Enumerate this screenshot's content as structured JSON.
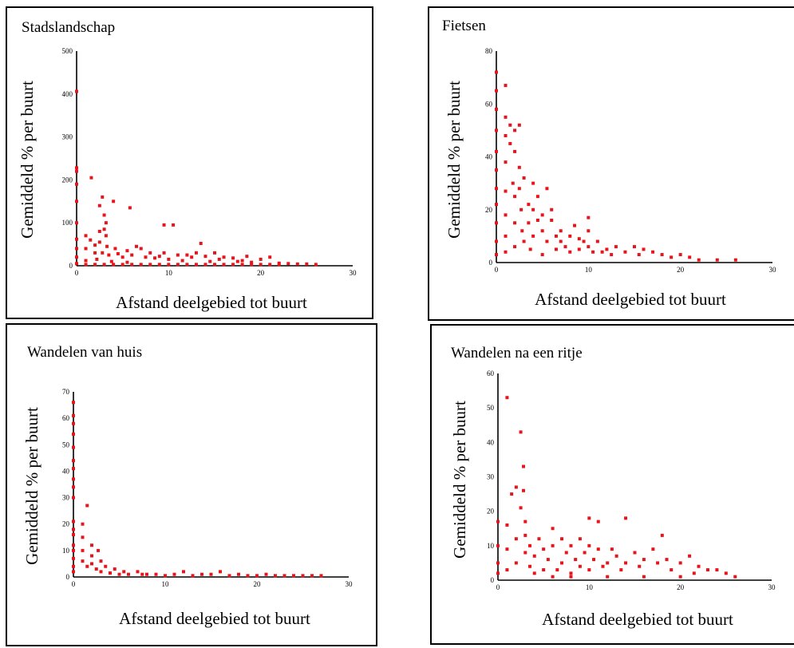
{
  "figure": {
    "ylabel": "Gemiddeld % per buurt",
    "xlabel": "Afstand deelgebied tot buurt",
    "point_color": "#e8141b"
  },
  "chart_data": [
    {
      "type": "scatter",
      "title": "Stadslandschap",
      "xlabel": "Afstand deelgebied tot buurt",
      "ylabel": "Gemiddeld % per buurt",
      "xlim": [
        0,
        30
      ],
      "ylim": [
        0,
        500
      ],
      "xticks": [
        "0",
        "10",
        "20",
        "30"
      ],
      "yticks": [
        "0",
        "100",
        "200",
        "300",
        "400",
        "500"
      ],
      "grid": false,
      "points": [
        [
          0,
          406
        ],
        [
          0,
          228
        ],
        [
          0,
          220
        ],
        [
          0,
          190
        ],
        [
          0,
          150
        ],
        [
          0,
          100
        ],
        [
          0,
          62
        ],
        [
          0,
          40
        ],
        [
          0,
          20
        ],
        [
          0,
          5
        ],
        [
          1,
          70
        ],
        [
          1,
          40
        ],
        [
          1,
          12
        ],
        [
          1.6,
          205
        ],
        [
          1.5,
          60
        ],
        [
          2,
          48
        ],
        [
          2,
          30
        ],
        [
          2.2,
          15
        ],
        [
          2.5,
          80
        ],
        [
          2.5,
          55
        ],
        [
          2.8,
          30
        ],
        [
          2.5,
          140
        ],
        [
          2.8,
          160
        ],
        [
          3,
          118
        ],
        [
          3,
          85
        ],
        [
          3.2,
          70
        ],
        [
          3.3,
          45
        ],
        [
          3.5,
          25
        ],
        [
          3.2,
          100
        ],
        [
          3.8,
          10
        ],
        [
          4,
          150
        ],
        [
          4.2,
          40
        ],
        [
          4.5,
          28
        ],
        [
          5,
          20
        ],
        [
          5.5,
          35
        ],
        [
          5.5,
          8
        ],
        [
          5.8,
          135
        ],
        [
          6,
          25
        ],
        [
          6.5,
          45
        ],
        [
          7,
          40
        ],
        [
          7.5,
          20
        ],
        [
          8,
          30
        ],
        [
          8.5,
          18
        ],
        [
          9,
          22
        ],
        [
          9.5,
          95
        ],
        [
          9.5,
          30
        ],
        [
          10,
          15
        ],
        [
          10.5,
          95
        ],
        [
          11,
          25
        ],
        [
          11.5,
          12
        ],
        [
          12,
          25
        ],
        [
          12.5,
          20
        ],
        [
          13,
          30
        ],
        [
          13.5,
          52
        ],
        [
          14,
          22
        ],
        [
          14.5,
          10
        ],
        [
          15,
          30
        ],
        [
          15.5,
          15
        ],
        [
          16,
          20
        ],
        [
          17,
          18
        ],
        [
          17.5,
          10
        ],
        [
          18,
          12
        ],
        [
          18.5,
          22
        ],
        [
          19,
          8
        ],
        [
          20,
          15
        ],
        [
          21,
          20
        ],
        [
          22,
          6
        ],
        [
          23,
          5
        ],
        [
          24,
          4
        ],
        [
          25,
          4
        ],
        [
          26,
          3
        ],
        [
          1,
          3
        ],
        [
          2,
          3
        ],
        [
          3,
          3
        ],
        [
          4,
          3
        ],
        [
          5,
          3
        ],
        [
          6,
          3
        ],
        [
          7,
          3
        ],
        [
          8,
          3
        ],
        [
          9,
          3
        ],
        [
          10,
          3
        ],
        [
          11,
          3
        ],
        [
          12,
          3
        ],
        [
          13,
          3
        ],
        [
          14,
          3
        ],
        [
          15,
          3
        ],
        [
          16,
          3
        ],
        [
          17,
          3
        ],
        [
          18,
          3
        ],
        [
          19,
          3
        ],
        [
          20,
          3
        ],
        [
          21,
          3
        ],
        [
          22,
          3
        ]
      ]
    },
    {
      "type": "scatter",
      "title": "Fietsen",
      "xlabel": "Afstand deelgebied tot buurt",
      "ylabel": "Gemiddeld % per buurt",
      "xlim": [
        0,
        30
      ],
      "ylim": [
        0,
        80
      ],
      "xticks": [
        "0",
        "10",
        "20",
        "30"
      ],
      "yticks": [
        "0",
        "20",
        "40",
        "60",
        "80"
      ],
      "grid": false,
      "points": [
        [
          0,
          72
        ],
        [
          0,
          65
        ],
        [
          0,
          58
        ],
        [
          0,
          50
        ],
        [
          0,
          42
        ],
        [
          0,
          35
        ],
        [
          0,
          28
        ],
        [
          0,
          22
        ],
        [
          0,
          15
        ],
        [
          0,
          8
        ],
        [
          0,
          3
        ],
        [
          1,
          67
        ],
        [
          1,
          55
        ],
        [
          1,
          48
        ],
        [
          1,
          38
        ],
        [
          1,
          27
        ],
        [
          1,
          18
        ],
        [
          1,
          10
        ],
        [
          1,
          4
        ],
        [
          1.5,
          52
        ],
        [
          1.5,
          45
        ],
        [
          1.8,
          30
        ],
        [
          2,
          50
        ],
        [
          2,
          42
        ],
        [
          2,
          25
        ],
        [
          2,
          15
        ],
        [
          2,
          6
        ],
        [
          2.5,
          52
        ],
        [
          2.5,
          36
        ],
        [
          2.5,
          28
        ],
        [
          2.7,
          20
        ],
        [
          2.8,
          12
        ],
        [
          3,
          8
        ],
        [
          3,
          32
        ],
        [
          3.5,
          22
        ],
        [
          3.5,
          15
        ],
        [
          3.7,
          5
        ],
        [
          4,
          30
        ],
        [
          4,
          20
        ],
        [
          4,
          10
        ],
        [
          4.5,
          16
        ],
        [
          4.5,
          25
        ],
        [
          5,
          18
        ],
        [
          5,
          12
        ],
        [
          5,
          3
        ],
        [
          5.5,
          28
        ],
        [
          5.5,
          8
        ],
        [
          6,
          16
        ],
        [
          6,
          20
        ],
        [
          6.5,
          10
        ],
        [
          6.5,
          5
        ],
        [
          7,
          12
        ],
        [
          7,
          8
        ],
        [
          7.5,
          6
        ],
        [
          8,
          10
        ],
        [
          8,
          4
        ],
        [
          8.5,
          14
        ],
        [
          9,
          9
        ],
        [
          9,
          5
        ],
        [
          9.5,
          8
        ],
        [
          10,
          17
        ],
        [
          10,
          12
        ],
        [
          10,
          6
        ],
        [
          10.5,
          4
        ],
        [
          11,
          8
        ],
        [
          11.5,
          4
        ],
        [
          12,
          5
        ],
        [
          12.5,
          3
        ],
        [
          13,
          6
        ],
        [
          14,
          4
        ],
        [
          15,
          6
        ],
        [
          15.5,
          3
        ],
        [
          16,
          5
        ],
        [
          17,
          4
        ],
        [
          18,
          3
        ],
        [
          19,
          2
        ],
        [
          20,
          3
        ],
        [
          21,
          2
        ],
        [
          22,
          1
        ],
        [
          24,
          1
        ],
        [
          26,
          1
        ]
      ]
    },
    {
      "type": "scatter",
      "title": "Wandelen van huis",
      "xlabel": "Afstand deelgebied tot buurt",
      "ylabel": "Gemiddeld % per buurt",
      "xlim": [
        0,
        30
      ],
      "ylim": [
        0,
        70
      ],
      "xticks": [
        "0",
        "10",
        "20",
        "30"
      ],
      "yticks": [
        "0",
        "10",
        "20",
        "30",
        "40",
        "50",
        "60",
        "70"
      ],
      "grid": false,
      "points": [
        [
          0,
          66
        ],
        [
          0,
          61
        ],
        [
          0,
          58
        ],
        [
          0,
          54
        ],
        [
          0,
          49
        ],
        [
          0,
          44
        ],
        [
          0,
          41
        ],
        [
          0,
          37
        ],
        [
          0,
          34
        ],
        [
          0,
          30
        ],
        [
          0,
          21
        ],
        [
          0,
          18
        ],
        [
          0,
          16
        ],
        [
          0,
          12
        ],
        [
          0,
          10
        ],
        [
          0,
          7
        ],
        [
          0,
          4
        ],
        [
          0,
          2
        ],
        [
          1.5,
          27
        ],
        [
          1,
          20
        ],
        [
          1,
          15
        ],
        [
          1,
          10
        ],
        [
          1,
          6
        ],
        [
          1.5,
          4
        ],
        [
          2,
          12
        ],
        [
          2,
          8
        ],
        [
          2,
          5
        ],
        [
          2.5,
          3
        ],
        [
          2.7,
          10
        ],
        [
          3,
          6
        ],
        [
          3,
          2
        ],
        [
          3.5,
          4
        ],
        [
          4,
          1.5
        ],
        [
          4.5,
          3
        ],
        [
          5,
          1
        ],
        [
          5.5,
          2
        ],
        [
          6,
          1
        ],
        [
          7,
          2
        ],
        [
          7.5,
          1
        ],
        [
          8,
          1
        ],
        [
          9,
          1
        ],
        [
          10,
          0.5
        ],
        [
          11,
          1
        ],
        [
          12,
          2
        ],
        [
          13,
          0.5
        ],
        [
          14,
          1
        ],
        [
          15,
          1
        ],
        [
          16,
          2
        ],
        [
          17,
          0.5
        ],
        [
          18,
          1
        ],
        [
          19,
          0.5
        ],
        [
          20,
          0.5
        ],
        [
          21,
          1
        ],
        [
          22,
          0.5
        ],
        [
          23,
          0.5
        ],
        [
          24,
          0.5
        ],
        [
          25,
          0.5
        ],
        [
          26,
          0.5
        ],
        [
          27,
          0.5
        ]
      ]
    },
    {
      "type": "scatter",
      "title": "Wandelen na een ritje",
      "xlabel": "Afstand deelgebied tot buurt",
      "ylabel": "Gemiddeld % per buurt",
      "xlim": [
        0,
        30
      ],
      "ylim": [
        0,
        60
      ],
      "xticks": [
        "0",
        "10",
        "20",
        "30"
      ],
      "yticks": [
        "0",
        "10",
        "20",
        "30",
        "40",
        "50",
        "60"
      ],
      "grid": false,
      "points": [
        [
          0,
          17
        ],
        [
          0,
          10
        ],
        [
          0,
          5
        ],
        [
          0,
          2
        ],
        [
          1,
          53
        ],
        [
          1,
          16
        ],
        [
          1,
          9
        ],
        [
          1,
          3
        ],
        [
          1.5,
          25
        ],
        [
          2,
          27
        ],
        [
          2,
          12
        ],
        [
          2,
          5
        ],
        [
          2.5,
          43
        ],
        [
          2.5,
          21
        ],
        [
          2.8,
          33
        ],
        [
          2.8,
          26
        ],
        [
          3,
          17
        ],
        [
          3,
          13
        ],
        [
          3,
          8
        ],
        [
          3.5,
          10
        ],
        [
          3.5,
          4
        ],
        [
          4,
          7
        ],
        [
          4,
          2
        ],
        [
          4.5,
          12
        ],
        [
          5,
          9
        ],
        [
          5,
          3
        ],
        [
          5.5,
          6
        ],
        [
          6,
          15
        ],
        [
          6,
          10
        ],
        [
          6.5,
          3
        ],
        [
          7,
          12
        ],
        [
          7,
          5
        ],
        [
          7.5,
          8
        ],
        [
          8,
          10
        ],
        [
          8,
          2
        ],
        [
          8.5,
          6
        ],
        [
          9,
          12
        ],
        [
          9,
          4
        ],
        [
          9.5,
          8
        ],
        [
          10,
          18
        ],
        [
          10,
          10
        ],
        [
          10,
          3
        ],
        [
          10.5,
          6
        ],
        [
          11,
          17
        ],
        [
          11,
          9
        ],
        [
          11.5,
          4
        ],
        [
          12,
          5
        ],
        [
          12.5,
          9
        ],
        [
          13,
          7
        ],
        [
          13.5,
          3
        ],
        [
          14,
          18
        ],
        [
          14,
          5
        ],
        [
          15,
          8
        ],
        [
          15.5,
          4
        ],
        [
          16,
          6
        ],
        [
          17,
          9
        ],
        [
          17.5,
          5
        ],
        [
          18,
          13
        ],
        [
          18.5,
          6
        ],
        [
          19,
          3
        ],
        [
          20,
          5
        ],
        [
          21,
          7
        ],
        [
          21.5,
          2
        ],
        [
          22,
          4
        ],
        [
          23,
          3
        ],
        [
          24,
          3
        ],
        [
          25,
          2
        ],
        [
          26,
          1
        ],
        [
          6,
          1
        ],
        [
          8,
          1
        ],
        [
          12,
          1
        ],
        [
          16,
          1
        ],
        [
          20,
          1
        ]
      ]
    }
  ]
}
